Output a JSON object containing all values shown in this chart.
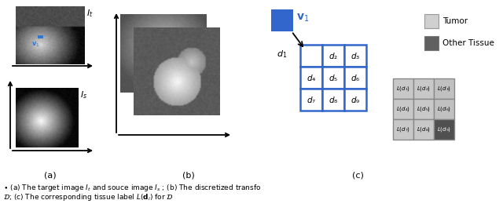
{
  "fig_width": 6.4,
  "fig_height": 2.69,
  "dpi": 100,
  "bg_color": "#ffffff",
  "legend_tumor_color": "#d0d0d0",
  "legend_other_color": "#606060",
  "grid_blue": "#3366cc",
  "grid_labels": [
    [
      "",
      "d₂",
      "d₃"
    ],
    [
      "d₄",
      "d₅",
      "d₆"
    ],
    [
      "d₇",
      "d₈",
      "d₉"
    ]
  ],
  "L_labels": [
    [
      "L(d₁)",
      "L(d₂)",
      "L(d₃)"
    ],
    [
      "L(d₄)",
      "L(d₅)",
      "L(d₆)"
    ],
    [
      "L(d₇)",
      "L(d₈)",
      "L(d₉)"
    ]
  ],
  "L_colors": [
    [
      "#c8c8c8",
      "#c8c8c8",
      "#c0c0c0"
    ],
    [
      "#c8c8c8",
      "#c8c8c8",
      "#c0c0c0"
    ],
    [
      "#c8c8c8",
      "#c8c8c8",
      "#505050"
    ]
  ],
  "L_text_colors": [
    [
      "#000000",
      "#000000",
      "#000000"
    ],
    [
      "#000000",
      "#000000",
      "#000000"
    ],
    [
      "#000000",
      "#000000",
      "#ffffff"
    ]
  ]
}
